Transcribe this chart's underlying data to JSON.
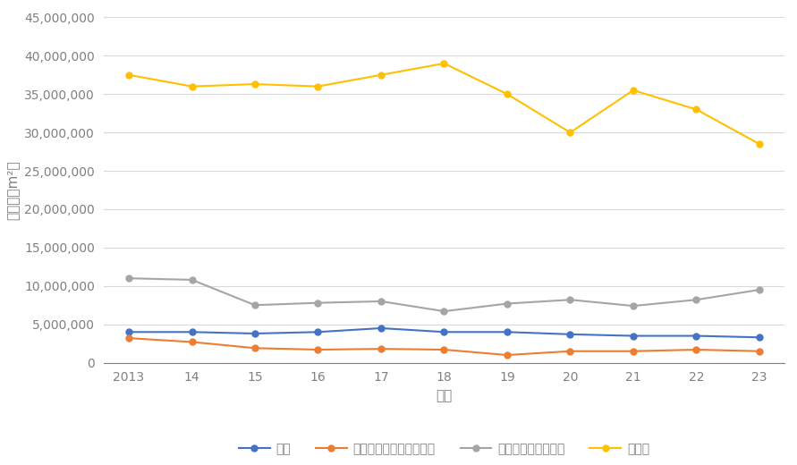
{
  "years": [
    "2013",
    "14",
    "15",
    "16",
    "17",
    "18",
    "19",
    "20",
    "21",
    "22",
    "23"
  ],
  "mokuzou": [
    4000000,
    4000000,
    3800000,
    4000000,
    4500000,
    4000000,
    4000000,
    3700000,
    3500000,
    3500000,
    3300000
  ],
  "tekkotsu_tekkin": [
    3200000,
    2700000,
    1900000,
    1700000,
    1800000,
    1700000,
    1000000,
    1500000,
    1500000,
    1700000,
    1500000
  ],
  "tekkin_concrete": [
    11000000,
    10800000,
    7500000,
    7800000,
    8000000,
    6700000,
    7700000,
    8200000,
    7400000,
    8200000,
    9500000
  ],
  "tekkotsu": [
    37500000,
    36000000,
    36300000,
    36000000,
    37500000,
    39000000,
    35000000,
    30000000,
    35500000,
    33000000,
    28500000
  ],
  "mokuzou_color": "#4472C4",
  "tekkotsu_tekkin_color": "#ED7D31",
  "tekkin_concrete_color": "#A5A5A5",
  "tekkotsu_color": "#FFC000",
  "ylabel": "床面積（m²）",
  "xlabel": "年度",
  "ylim": [
    0,
    45000000
  ],
  "yticks": [
    0,
    5000000,
    10000000,
    15000000,
    20000000,
    25000000,
    30000000,
    35000000,
    40000000,
    45000000
  ],
  "legend_mokuzou": "木造",
  "legend_tekkotsu_tekkin": "鉄骨鉄筋コンクリート造",
  "legend_tekkin_concrete": "鉄筋コンクリート造",
  "legend_tekkotsu": "鉄骨造",
  "background_color": "#FFFFFF",
  "grid_color": "#D9D9D9",
  "tick_color": "#808080",
  "axis_color": "#808080"
}
